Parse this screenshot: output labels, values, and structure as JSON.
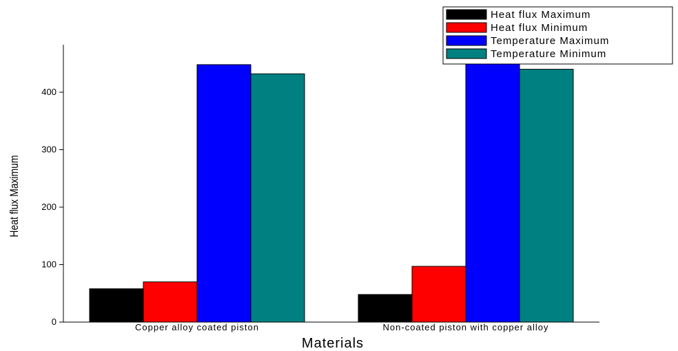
{
  "chart_data": {
    "type": "bar",
    "categories": [
      "Copper alloy coated piston",
      "Non-coated piston with copper alloy"
    ],
    "series": [
      {
        "name": "Heat flux Maximum",
        "values": [
          58,
          48
        ],
        "color": "#000000"
      },
      {
        "name": "Heat flux Minimum",
        "values": [
          70,
          97
        ],
        "color": "#ff0000"
      },
      {
        "name": "Temperature Maximum",
        "values": [
          448,
          450
        ],
        "color": "#0000ff"
      },
      {
        "name": "Temperature Minimum",
        "values": [
          432,
          440
        ],
        "color": "#008080"
      }
    ],
    "xlabel": "Materials",
    "ylabel": "Heat flux Maximum",
    "ylim": [
      0,
      450
    ],
    "yticks": [
      0,
      100,
      200,
      300,
      400
    ],
    "legend_position": "top-right",
    "grid": false
  }
}
